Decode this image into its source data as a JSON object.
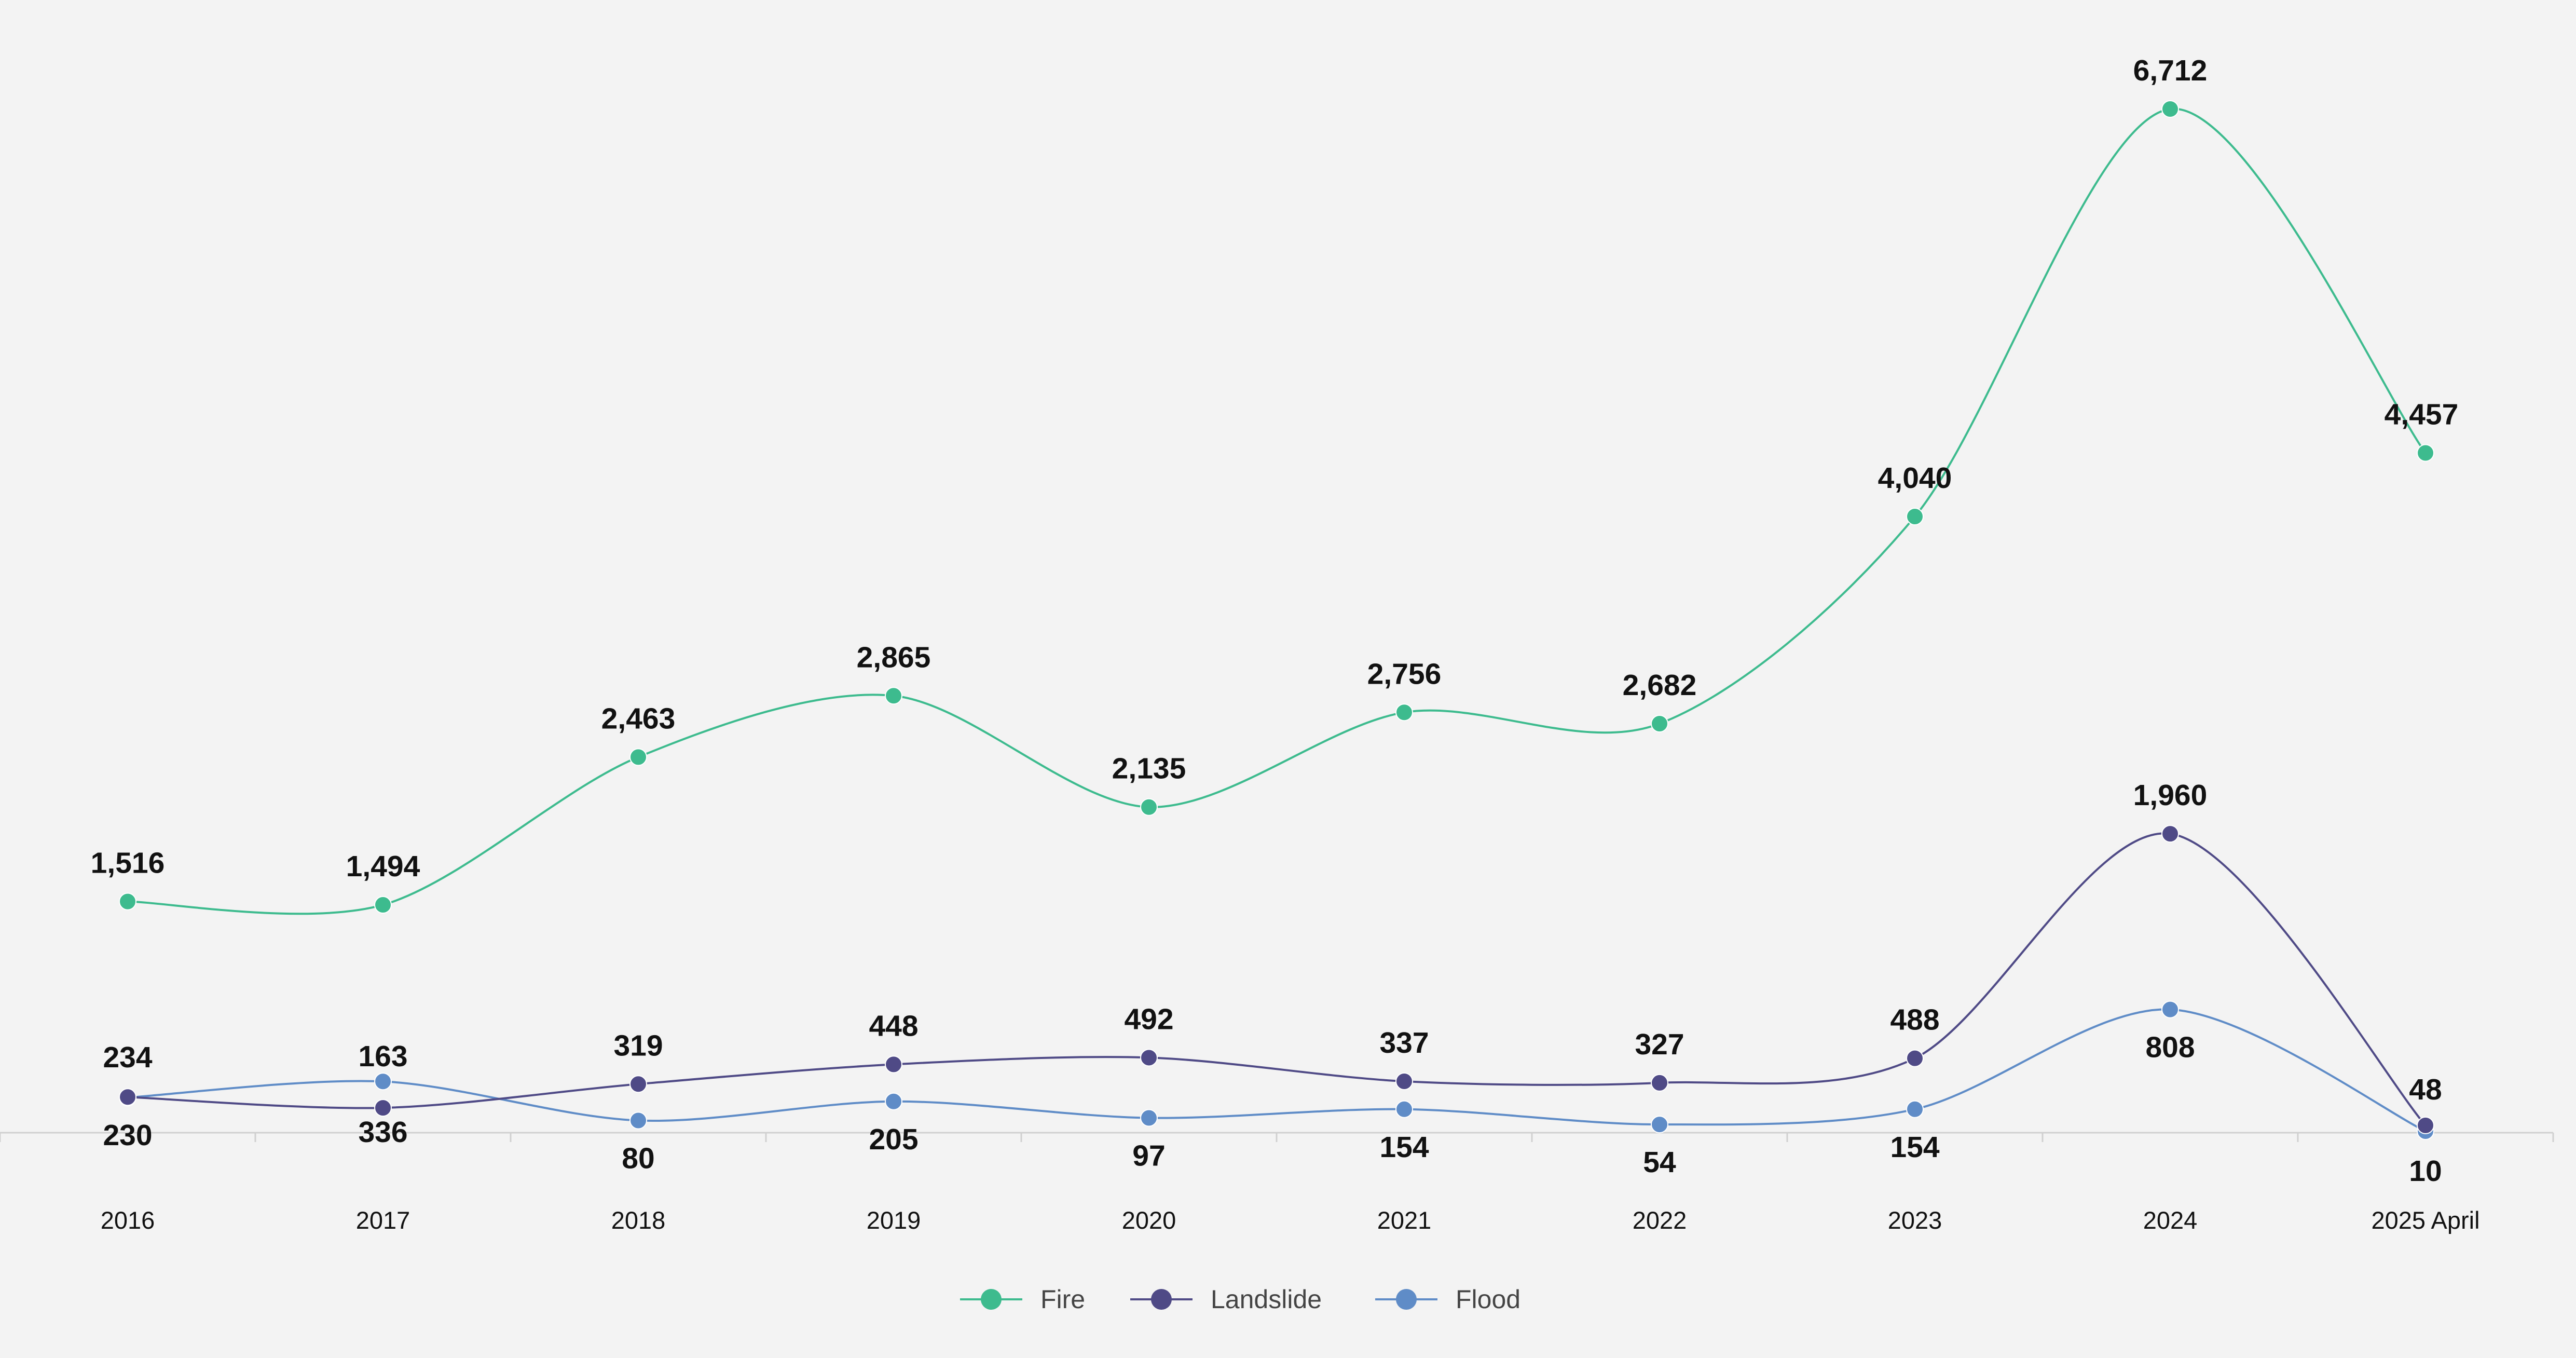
{
  "chart_data": {
    "type": "line",
    "title": "",
    "xlabel": "",
    "ylabel": "",
    "categories": [
      "2016",
      "2017",
      "2018",
      "2019",
      "2020",
      "2021",
      "2022",
      "2023",
      "2024",
      "2025 April"
    ],
    "ylim": [
      0,
      7000
    ],
    "grid": false,
    "smooth": true,
    "legend_position": "bottom",
    "series": [
      {
        "name": "Fire",
        "color": "#3dbb8e",
        "values": [
          1516,
          1494,
          2463,
          2865,
          2135,
          2756,
          2682,
          4040,
          6712,
          4457
        ],
        "labels": [
          "1,516",
          "1,494",
          "2,463",
          "2,865",
          "2,135",
          "2,756",
          "2,682",
          "4,040",
          "6,712",
          "4,457"
        ]
      },
      {
        "name": "Landslide",
        "color": "#4f4a86",
        "values": [
          234,
          163,
          319,
          448,
          492,
          337,
          327,
          488,
          1960,
          48
        ],
        "labels": [
          "234",
          "163",
          "319",
          "448",
          "492",
          "337",
          "327",
          "488",
          "1,960",
          "48"
        ]
      },
      {
        "name": "Flood",
        "color": "#5f8cc7",
        "values": [
          230,
          336,
          80,
          205,
          97,
          154,
          54,
          154,
          808,
          10
        ],
        "labels": [
          "230",
          "336",
          "80",
          "205",
          "97",
          "154",
          "54",
          "154",
          "808",
          "10"
        ]
      }
    ]
  }
}
